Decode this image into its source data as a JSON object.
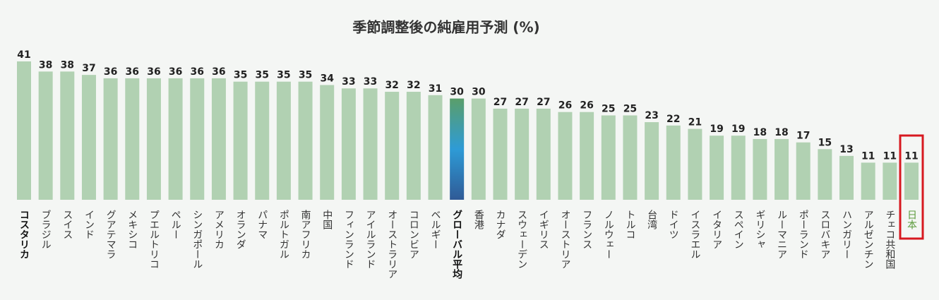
{
  "chart_data": {
    "type": "bar",
    "title": "季節調整後の純雇用予測 (%)",
    "categories": [
      "コスタリカ",
      "ブラジル",
      "スイス",
      "インド",
      "グアテマラ",
      "メキシコ",
      "プエルトリコ",
      "ペルー",
      "シンガポール",
      "アメリカ",
      "オランダ",
      "パナマ",
      "ポルトガル",
      "南アフリカ",
      "中国",
      "フィンランド",
      "アイルランド",
      "オーストラリア",
      "コロンビア",
      "ベルギー",
      "グローバル平均",
      "香港",
      "カナダ",
      "スウェーデン",
      "イギリス",
      "オーストリア",
      "フランス",
      "ノルウェー",
      "トルコ",
      "台湾",
      "ドイツ",
      "イスラエル",
      "イタリア",
      "スペイン",
      "ギリシャ",
      "ルーマニア",
      "ポーランド",
      "スロバキア",
      "ハンガリー",
      "アルゼンチン",
      "チェコ共和国",
      "日本"
    ],
    "values": [
      41,
      38,
      38,
      37,
      36,
      36,
      36,
      36,
      36,
      36,
      35,
      35,
      35,
      35,
      34,
      33,
      33,
      32,
      32,
      31,
      30,
      30,
      27,
      27,
      27,
      26,
      26,
      25,
      25,
      23,
      22,
      21,
      19,
      19,
      18,
      18,
      17,
      15,
      13,
      11,
      11,
      11
    ],
    "color": "#b1d1b2",
    "bold_categories": [
      0,
      20
    ],
    "gradient_category": 20,
    "gradient_colors": [
      "#5a9e6a",
      "#2e9bd6",
      "#2f5a96"
    ],
    "boxed_category": 41,
    "boxed_color": "#d71920",
    "boxed_label_color": "#5a9a3a"
  }
}
